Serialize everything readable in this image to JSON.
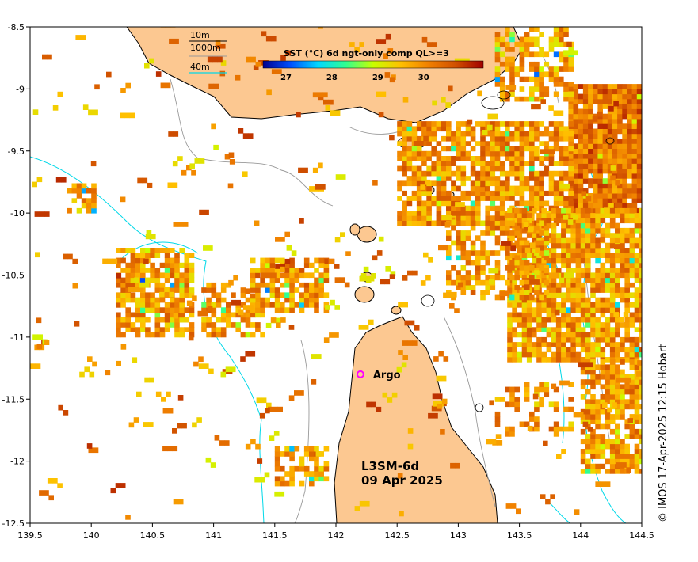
{
  "chart_data": {
    "type": "heatmap",
    "title": "SST (°C) 6d ngt-only comp QL>=3",
    "xlim": [
      139.5,
      144.5
    ],
    "ylim": [
      -12.5,
      -8.5
    ],
    "x_ticks": [
      "139.5",
      "140",
      "140.5",
      "141",
      "141.5",
      "142",
      "142.5",
      "143",
      "143.5",
      "144",
      "144.5"
    ],
    "y_ticks": [
      "-8.5",
      "-9",
      "-9.5",
      "-10",
      "-10.5",
      "-11",
      "-11.5",
      "-12",
      "-12.5"
    ],
    "colorbar": {
      "ticks": [
        "27",
        "28",
        "29",
        "30"
      ],
      "range": [
        26.5,
        31.3
      ],
      "colors": [
        "#00008f",
        "#0050ff",
        "#00d8ff",
        "#30ff90",
        "#c8ff00",
        "#ffc000",
        "#f08000",
        "#d05000",
        "#a00000"
      ]
    },
    "bathymetry_legend": [
      {
        "label": "10m",
        "color": "#000000"
      },
      {
        "label": "1000m",
        "color": "#999999"
      },
      {
        "label": "40m",
        "color": "#00d8e8"
      }
    ],
    "product": {
      "name": "L3SM-6d",
      "date": "09 Apr 2025"
    },
    "argo": {
      "label": "Argo",
      "lon": 142.2,
      "lat": -11.3
    },
    "land_color": "#fcc891",
    "credit": "© IMOS 17-Apr-2025 12:15 Hobart",
    "sst_regions": [
      {
        "lon": [
          143.9,
          144.5
        ],
        "lat": [
          -10.0,
          -9.0
        ],
        "mean": 30.3,
        "density": 0.95
      },
      {
        "lon": [
          143.3,
          143.9
        ],
        "lat": [
          -9.1,
          -8.5
        ],
        "mean": 29.8,
        "density": 0.6
      },
      {
        "lon": [
          142.5,
          143.9
        ],
        "lat": [
          -10.1,
          -9.3
        ],
        "mean": 30.0,
        "density": 0.8
      },
      {
        "lon": [
          143.4,
          144.5
        ],
        "lat": [
          -11.2,
          -10.0
        ],
        "mean": 29.9,
        "density": 0.85
      },
      {
        "lon": [
          144.0,
          144.5
        ],
        "lat": [
          -12.1,
          -11.2
        ],
        "mean": 29.9,
        "density": 0.75
      },
      {
        "lon": [
          142.9,
          143.7
        ],
        "lat": [
          -10.7,
          -10.1
        ],
        "mean": 29.9,
        "density": 0.55
      },
      {
        "lon": [
          140.2,
          140.8
        ],
        "lat": [
          -11.0,
          -10.3
        ],
        "mean": 29.9,
        "density": 0.8
      },
      {
        "lon": [
          141.3,
          141.9
        ],
        "lat": [
          -10.8,
          -10.4
        ],
        "mean": 30.0,
        "density": 0.7
      },
      {
        "lon": [
          140.9,
          141.4
        ],
        "lat": [
          -11.0,
          -10.6
        ],
        "mean": 29.9,
        "density": 0.5
      },
      {
        "lon": [
          141.5,
          141.9
        ],
        "lat": [
          -12.2,
          -11.9
        ],
        "mean": 29.9,
        "density": 0.6
      },
      {
        "lon": [
          143.3,
          143.9
        ],
        "lat": [
          -11.8,
          -11.4
        ],
        "mean": 29.9,
        "density": 0.35
      },
      {
        "lon": [
          139.8,
          140.0
        ],
        "lat": [
          -10.0,
          -9.8
        ],
        "mean": 29.8,
        "density": 0.6
      }
    ],
    "sst_scatter": [
      {
        "lon": [
          139.5,
          144.5
        ],
        "lat": [
          -12.5,
          -8.5
        ],
        "count": 260,
        "mean": 30.0
      }
    ]
  }
}
